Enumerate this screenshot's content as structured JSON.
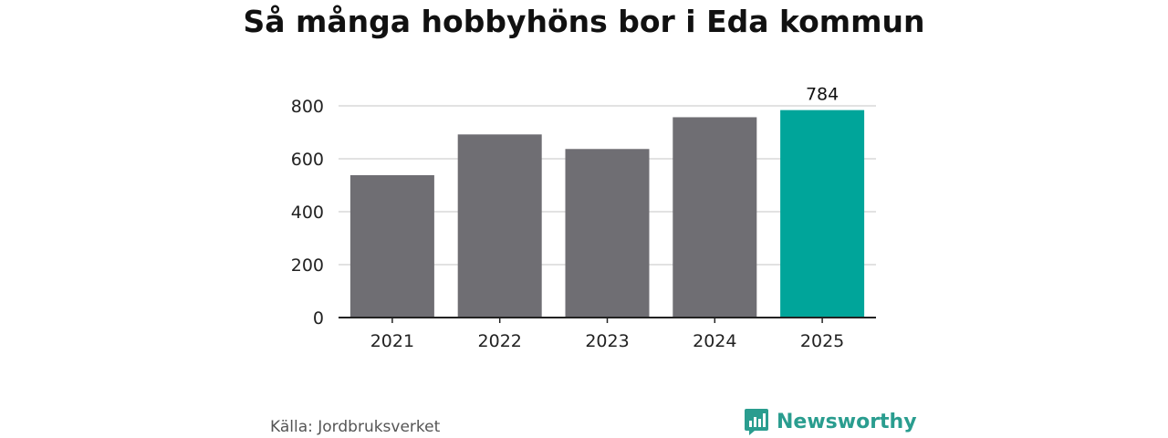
{
  "chart_data": {
    "type": "bar",
    "title": "Så många hobbyhöns bor i Eda kommun",
    "categories": [
      "2021",
      "2022",
      "2023",
      "2024",
      "2025"
    ],
    "values": [
      538,
      692,
      637,
      757,
      784
    ],
    "highlight_index": 4,
    "data_labels": {
      "4": "784"
    },
    "yticks": [
      "0",
      "200",
      "400",
      "600",
      "800"
    ],
    "ylim": [
      0,
      800
    ],
    "xlabel": "",
    "ylabel": "",
    "grid": true,
    "colors": {
      "bar": "#6f6e73",
      "highlight": "#00a59a",
      "grid": "#d9d9d9",
      "axis": "#222222"
    }
  },
  "footer": {
    "source": "Källa: Jordbruksverket",
    "brand": "Newsworthy",
    "brand_icon": "newsworthy-logo-icon",
    "brand_color": "#2a9d8f"
  }
}
